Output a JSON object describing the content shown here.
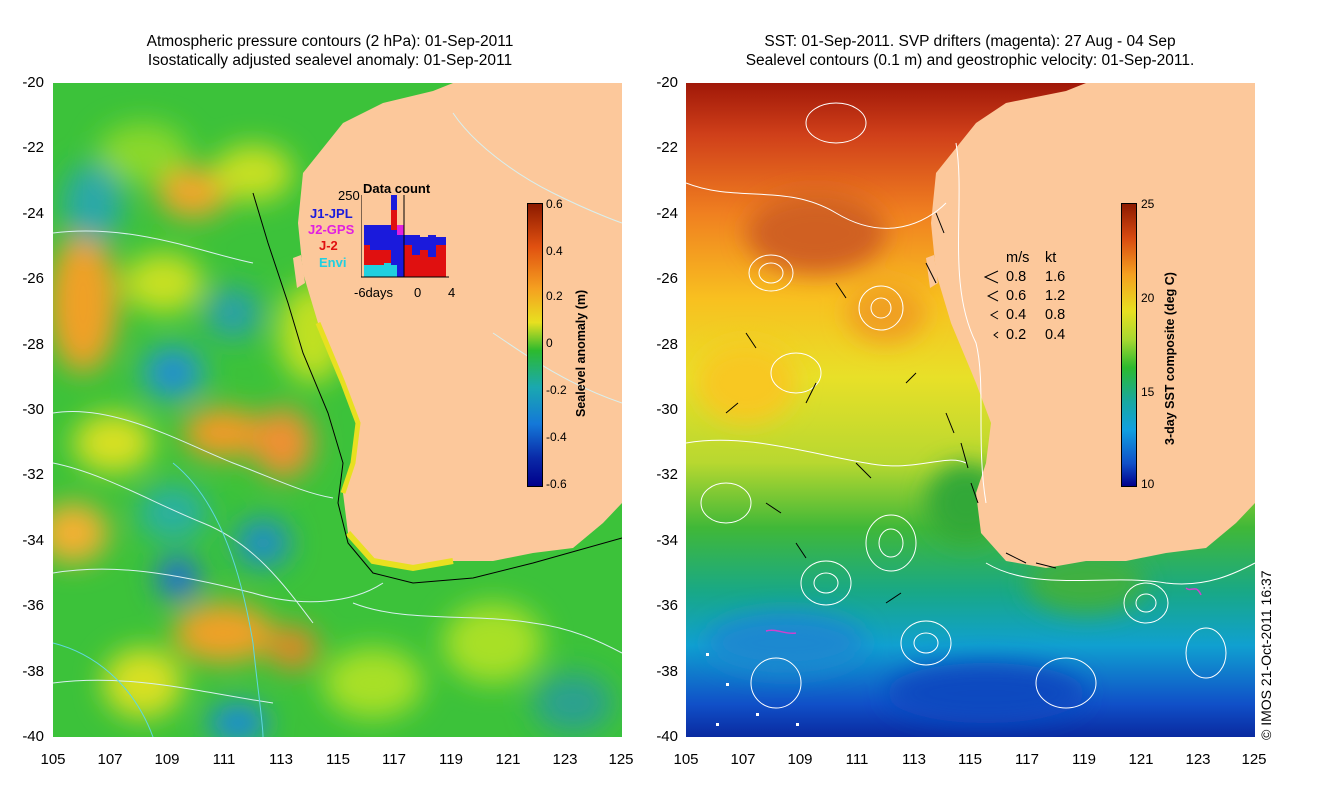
{
  "left_panel": {
    "title_line1": "Atmospheric pressure contours (2 hPa): 01-Sep-2011",
    "title_line2": "Isostatically adjusted sealevel anomaly: 01-Sep-2011",
    "colorbar_label": "Sealevel anomaly (m)",
    "colorbar_ticks": [
      "0.6",
      "0.4",
      "0.2",
      "0",
      "-0.2",
      "-0.4",
      "-0.6"
    ],
    "inset": {
      "title": "Data count",
      "ymax_label": "250",
      "x_labels": [
        "-6days",
        "0",
        "4"
      ],
      "satellites": [
        {
          "name": "J1-JPL",
          "color": "#1a1adc"
        },
        {
          "name": "J2-GPS",
          "color": "#e020e0"
        },
        {
          "name": "J-2",
          "color": "#e01010"
        },
        {
          "name": "Envi",
          "color": "#20d0e0"
        }
      ]
    }
  },
  "right_panel": {
    "title_line1": "SST: 01-Sep-2011. SVP drifters (magenta): 27 Aug - 04 Sep",
    "title_line2": "Sealevel contours (0.1 m) and geostrophic velocity: 01-Sep-2011.",
    "colorbar_label": "3-day SST composite (deg C)",
    "colorbar_ticks": [
      "25",
      "20",
      "15",
      "10"
    ],
    "velocity_legend": {
      "header_ms": "m/s",
      "header_kt": "kt",
      "rows": [
        {
          "ms": "0.8",
          "kt": "1.6"
        },
        {
          "ms": "0.6",
          "kt": "1.2"
        },
        {
          "ms": "0.4",
          "kt": "0.8"
        },
        {
          "ms": "0.2",
          "kt": "0.4"
        }
      ]
    }
  },
  "axes": {
    "lat_ticks": [
      "-20",
      "-22",
      "-24",
      "-26",
      "-28",
      "-30",
      "-32",
      "-34",
      "-36",
      "-38",
      "-40"
    ],
    "lon_ticks": [
      "105",
      "107",
      "109",
      "111",
      "113",
      "115",
      "117",
      "119",
      "121",
      "123",
      "125"
    ]
  },
  "credit": "© IMOS 21-Oct-2011 16:37",
  "colors": {
    "land": "#fcc89b",
    "sla_low": "#00008c",
    "sla_zero": "#20b030",
    "sla_high": "#8c1a00",
    "contour": "#ffffff"
  }
}
